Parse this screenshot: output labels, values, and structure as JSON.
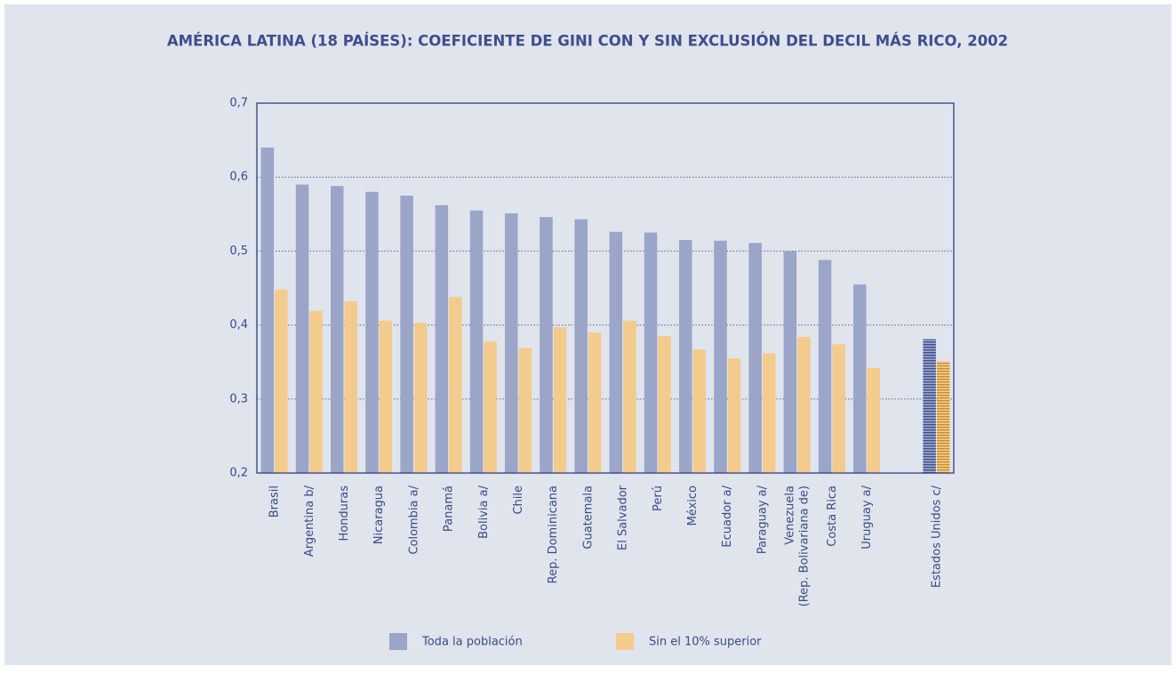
{
  "chart_data": {
    "type": "bar",
    "title": "AMÉRICA LATINA (18 PAÍSES): COEFICIENTE DE GINI CON Y SIN EXCLUSIÓN DEL DECIL MÁS RICO, 2002",
    "categories": [
      "Brasil",
      "Argentina b/",
      "Honduras",
      "Nicaragua",
      "Colombia a/",
      "Panamá",
      "Bolivia a/",
      "Chile",
      "Rep. Dominicana",
      "Guatemala",
      "El Salvador",
      "Perú",
      "México",
      "Ecuador a/",
      "Paraguay a/",
      "Venezuela\n(Rep. Bolivariana de)",
      "Costa Rica",
      "Uruguay a/",
      null,
      "Estados Unidos c/"
    ],
    "series": [
      {
        "name": "Toda la población",
        "color": "#9aa5c8",
        "values": [
          0.64,
          0.59,
          0.588,
          0.58,
          0.575,
          0.562,
          0.555,
          0.551,
          0.546,
          0.543,
          0.526,
          0.525,
          0.515,
          0.514,
          0.511,
          0.5,
          0.488,
          0.455,
          null,
          0.381
        ]
      },
      {
        "name": "Sin el 10% superior",
        "color": "#f2cb8d",
        "values": [
          0.448,
          0.419,
          0.432,
          0.406,
          0.403,
          0.438,
          0.378,
          0.369,
          0.397,
          0.39,
          0.406,
          0.385,
          0.367,
          0.355,
          0.362,
          0.384,
          0.374,
          0.342,
          null,
          0.351
        ]
      }
    ],
    "striped_index": 19,
    "stripe_colors": [
      "#3b4c8c",
      "#c98a25"
    ],
    "ylim": [
      0.2,
      0.7
    ],
    "yticks": [
      {
        "value": 0.2,
        "label": "0,2"
      },
      {
        "value": 0.3,
        "label": "0,3"
      },
      {
        "value": 0.4,
        "label": "0,4"
      },
      {
        "value": 0.5,
        "label": "0,5"
      },
      {
        "value": 0.6,
        "label": "0,6"
      },
      {
        "value": 0.7,
        "label": "0,7"
      }
    ],
    "grid": true
  }
}
